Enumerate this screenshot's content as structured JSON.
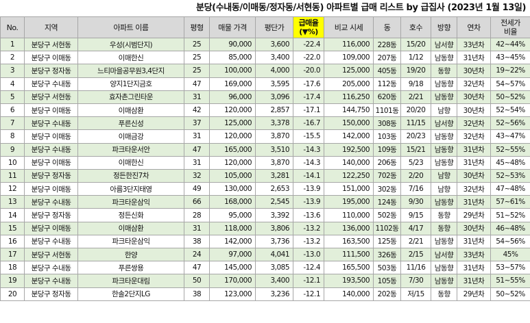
{
  "title": "분당(수내동/이매동/정자동/서현동) 아파트별 급매 리스트 by 급집사 (2023년 1월 13일)",
  "headers": {
    "no": "No.",
    "region": "지역",
    "apt": "아파트 이름",
    "pyeong": "평형",
    "price": "매물 가격",
    "per_pyeong": "평단가",
    "drop1": "급매율",
    "drop2": "(▼%)",
    "compare": "비교 시세",
    "dong": "동",
    "ho": "호수",
    "direction": "방향",
    "year": "연차",
    "ratio1": "전세가",
    "ratio2": "비율"
  },
  "colors": {
    "header_bg": "#d9d9d9",
    "highlight": "#ffff00",
    "stripe": "#e2efda",
    "border": "#a6a6a6"
  },
  "rows": [
    {
      "no": "1",
      "region": "분당구 서현동",
      "apt": "우성(시범단지)",
      "pyeong": "25",
      "price": "90,000",
      "per": "3,600",
      "drop": "-22.4",
      "compare": "116,000",
      "dong": "228동",
      "ho": "15/20",
      "dir": "남서향",
      "year": "33년차",
      "ratio": "42~44%"
    },
    {
      "no": "2",
      "region": "분당구 이매동",
      "apt": "이매한신",
      "pyeong": "25",
      "price": "85,000",
      "per": "3,400",
      "drop": "-22.0",
      "compare": "109,000",
      "dong": "207동",
      "ho": "1/12",
      "dir": "남동향",
      "year": "31년차",
      "ratio": "43~45%"
    },
    {
      "no": "3",
      "region": "분당구 정자동",
      "apt": "느티마을공무원3,4단지",
      "pyeong": "25",
      "price": "100,000",
      "per": "4,000",
      "drop": "-20.0",
      "compare": "125,000",
      "dong": "405동",
      "ho": "19/20",
      "dir": "동향",
      "year": "30년차",
      "ratio": "19~22%"
    },
    {
      "no": "4",
      "region": "분당구 수내동",
      "apt": "양지1단지금호",
      "pyeong": "47",
      "price": "169,000",
      "per": "3,595",
      "drop": "-17.6",
      "compare": "205,000",
      "dong": "112동",
      "ho": "9/18",
      "dir": "남동향",
      "year": "32년차",
      "ratio": "54~57%"
    },
    {
      "no": "5",
      "region": "분당구 서현동",
      "apt": "효자촌그린타운",
      "pyeong": "31",
      "price": "96,000",
      "per": "3,096",
      "drop": "-17.4",
      "compare": "116,250",
      "dong": "620동",
      "ho": "2/21",
      "dir": "남동향",
      "year": "30년차",
      "ratio": "50~52%"
    },
    {
      "no": "6",
      "region": "분당구 이매동",
      "apt": "이매삼환",
      "pyeong": "42",
      "price": "120,000",
      "per": "2,857",
      "drop": "-17.1",
      "compare": "144,750",
      "dong": "1101동",
      "ho": "20/20",
      "dir": "남향",
      "year": "30년차",
      "ratio": "52~54%"
    },
    {
      "no": "7",
      "region": "분당구 수내동",
      "apt": "푸른신성",
      "pyeong": "37",
      "price": "125,000",
      "per": "3,378",
      "drop": "-16.7",
      "compare": "150,000",
      "dong": "308동",
      "ho": "11/15",
      "dir": "남서향",
      "year": "32년차",
      "ratio": "52~56%"
    },
    {
      "no": "8",
      "region": "분당구 이매동",
      "apt": "이매금강",
      "pyeong": "31",
      "price": "120,000",
      "per": "3,870",
      "drop": "-15.5",
      "compare": "142,000",
      "dong": "103동",
      "ho": "20/23",
      "dir": "남동향",
      "year": "32년차",
      "ratio": "43~47%"
    },
    {
      "no": "9",
      "region": "분당구 수내동",
      "apt": "파크타운서안",
      "pyeong": "47",
      "price": "165,000",
      "per": "3,510",
      "drop": "-14.3",
      "compare": "192,500",
      "dong": "109동",
      "ho": "15/21",
      "dir": "남동향",
      "year": "31년차",
      "ratio": "52~55%"
    },
    {
      "no": "10",
      "region": "분당구 이매동",
      "apt": "이매한신",
      "pyeong": "31",
      "price": "120,000",
      "per": "3,870",
      "drop": "-14.3",
      "compare": "140,000",
      "dong": "206동",
      "ho": "5/23",
      "dir": "남동향",
      "year": "31년차",
      "ratio": "45~48%"
    },
    {
      "no": "11",
      "region": "분당구 정자동",
      "apt": "정든한진7차",
      "pyeong": "32",
      "price": "105,000",
      "per": "3,281",
      "drop": "-14.1",
      "compare": "122,250",
      "dong": "702동",
      "ho": "2/20",
      "dir": "남향",
      "year": "30년차",
      "ratio": "52~53%"
    },
    {
      "no": "12",
      "region": "분당구 이매동",
      "apt": "아름3단지태영",
      "pyeong": "49",
      "price": "130,000",
      "per": "2,653",
      "drop": "-13.9",
      "compare": "151,000",
      "dong": "302동",
      "ho": "7/16",
      "dir": "남향",
      "year": "32년차",
      "ratio": "47~48%"
    },
    {
      "no": "13",
      "region": "분당구 수내동",
      "apt": "파크타운삼익",
      "pyeong": "66",
      "price": "168,000",
      "per": "2,545",
      "drop": "-13.9",
      "compare": "195,000",
      "dong": "124동",
      "ho": "9/30",
      "dir": "남동향",
      "year": "31년차",
      "ratio": "57~61%"
    },
    {
      "no": "14",
      "region": "분당구 정자동",
      "apt": "정든신화",
      "pyeong": "28",
      "price": "95,000",
      "per": "3,392",
      "drop": "-13.6",
      "compare": "110,000",
      "dong": "502동",
      "ho": "9/15",
      "dir": "동향",
      "year": "29년차",
      "ratio": "51~52%"
    },
    {
      "no": "15",
      "region": "분당구 이매동",
      "apt": "이매삼환",
      "pyeong": "31",
      "price": "118,000",
      "per": "3,806",
      "drop": "-13.2",
      "compare": "136,000",
      "dong": "1102동",
      "ho": "4/17",
      "dir": "동향",
      "year": "30년차",
      "ratio": "46~48%"
    },
    {
      "no": "16",
      "region": "분당구 수내동",
      "apt": "파크타운삼익",
      "pyeong": "38",
      "price": "142,000",
      "per": "3,736",
      "drop": "-13.2",
      "compare": "163,500",
      "dong": "125동",
      "ho": "2/21",
      "dir": "남동향",
      "year": "31년차",
      "ratio": "54~56%"
    },
    {
      "no": "17",
      "region": "분당구 서현동",
      "apt": "한양",
      "pyeong": "24",
      "price": "97,000",
      "per": "4,041",
      "drop": "-13.0",
      "compare": "111,500",
      "dong": "326동",
      "ho": "2/15",
      "dir": "남서향",
      "year": "33년차",
      "ratio": "45%"
    },
    {
      "no": "18",
      "region": "분당구 수내동",
      "apt": "푸른쌍용",
      "pyeong": "47",
      "price": "145,000",
      "per": "3,085",
      "drop": "-12.4",
      "compare": "165,500",
      "dong": "503동",
      "ho": "11/16",
      "dir": "남동향",
      "year": "31년차",
      "ratio": "53~57%"
    },
    {
      "no": "19",
      "region": "분당구 수내동",
      "apt": "파크타운대림",
      "pyeong": "50",
      "price": "170,000",
      "per": "3,400",
      "drop": "-12.1",
      "compare": "193,500",
      "dong": "105동",
      "ho": "7/30",
      "dir": "남동향",
      "year": "31년차",
      "ratio": "51~55%"
    },
    {
      "no": "20",
      "region": "분당구 정자동",
      "apt": "한솔2단지LG",
      "pyeong": "38",
      "price": "123,000",
      "per": "3,236",
      "drop": "-12.1",
      "compare": "140,000",
      "dong": "202동",
      "ho": "저/15",
      "dir": "동향",
      "year": "29년차",
      "ratio": "50~52%"
    }
  ]
}
